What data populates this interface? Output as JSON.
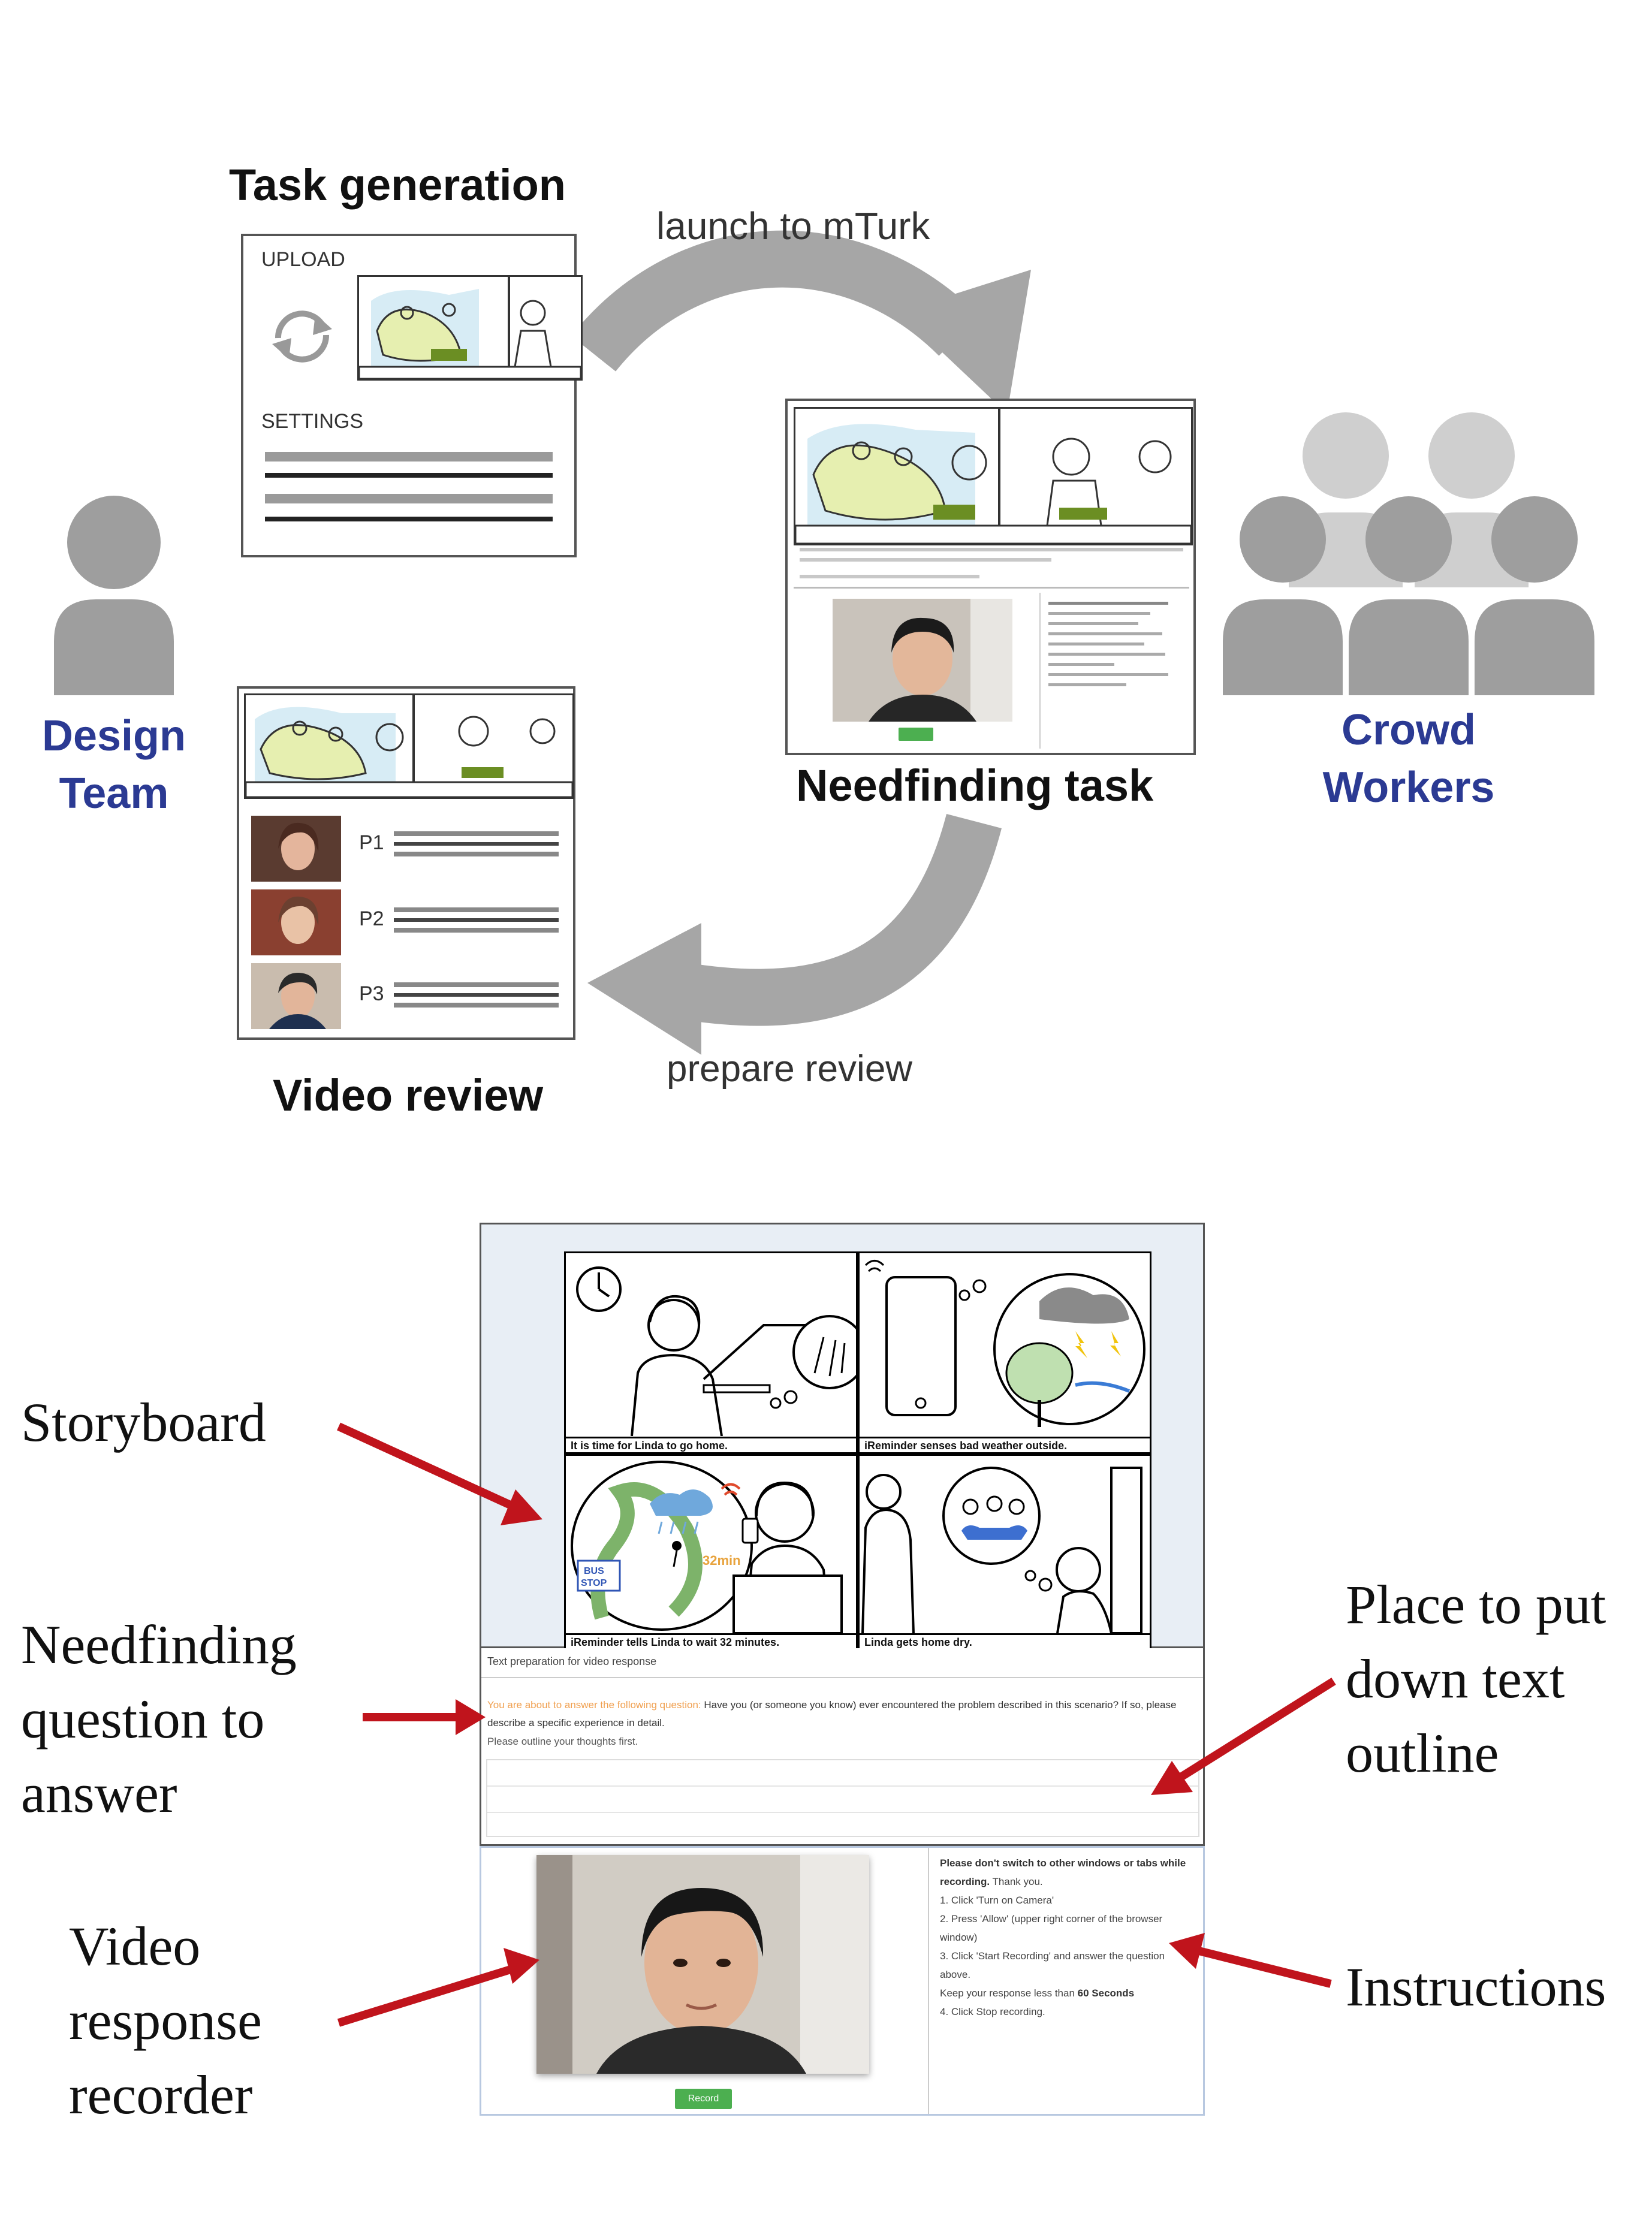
{
  "top_diagram": {
    "task_generation": {
      "title": "Task generation",
      "upload_label": "UPLOAD",
      "settings_label": "SETTINGS"
    },
    "launch_label": "launch to mTurk",
    "needfinding_task": {
      "title": "Needfinding task"
    },
    "prepare_label": "prepare review",
    "video_review": {
      "title": "Video review",
      "participants": [
        "P1",
        "P2",
        "P3"
      ]
    },
    "design_team": {
      "line1": "Design",
      "line2": "Team"
    },
    "crowd_workers": {
      "line1": "Crowd",
      "line2": "Workers"
    },
    "colors": {
      "actor_label": "#2b3a93",
      "arrow_gray": "#a6a6a6",
      "person_gray": "#9e9e9e",
      "callout_red": "#c0141c"
    }
  },
  "bottom_ui": {
    "storyboard_captions": [
      "It is time for Linda to go home.",
      "iReminder senses bad weather outside.",
      "iReminder tells Linda to wait 32 minutes.",
      "Linda gets home dry."
    ],
    "panel3_sign_line1": "BUS",
    "panel3_sign_line2": "STOP",
    "panel3_badge": "32min",
    "text_prep_title": "Text preparation for video response",
    "question_prefix": "You are about to answer the following question:",
    "question_text": "Have you (or someone you know) ever encountered the problem described in this scenario? If so, please describe a specific experience in detail.",
    "question_hint": "Please outline your thoughts first.",
    "record_button": "Record",
    "instructions": {
      "lead_bold": "Please don't switch to other windows or tabs while recording.",
      "lead_rest": "Thank you.",
      "step1": "1. Click 'Turn on Camera'",
      "step2": "2. Press 'Allow' (upper right corner of the browser window)",
      "step3": "3. Click 'Start Recording' and answer the question above.",
      "keep_prefix": "Keep your response less than",
      "keep_bold": "60 Seconds",
      "step4": "4. Click Stop recording."
    },
    "callouts": {
      "storyboard": "Storyboard",
      "question_line1": "Needfinding",
      "question_line2": "question to",
      "question_line3": "answer",
      "video_line1": "Video",
      "video_line2": "response",
      "video_line3": "recorder",
      "outline_line1": "Place to put",
      "outline_line2": "down text",
      "outline_line3": "outline",
      "instructions": "Instructions"
    }
  }
}
